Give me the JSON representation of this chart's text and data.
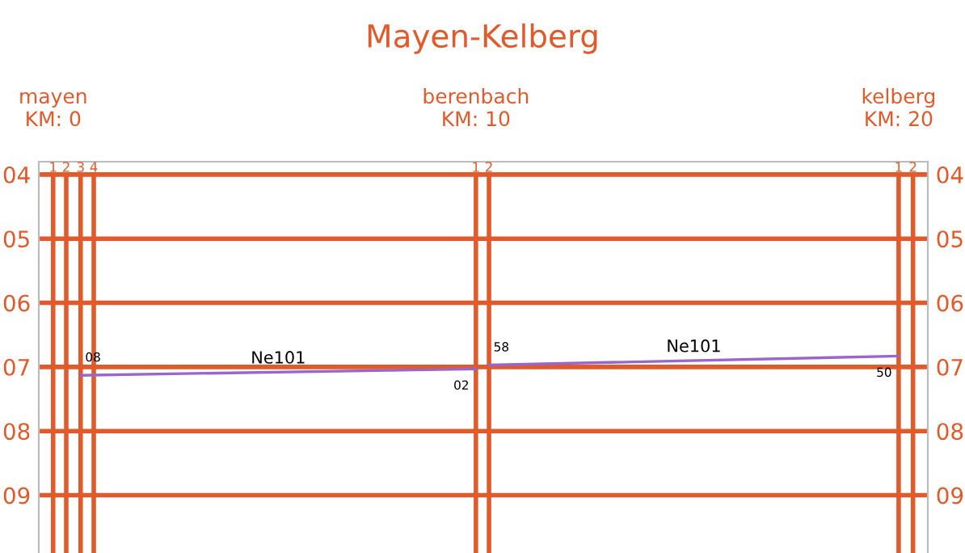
{
  "chart_data": {
    "type": "line",
    "title": "Mayen-Kelberg",
    "xlim": [
      -0.34,
      20.69
    ],
    "xticks": [
      {
        "value": 0,
        "label": "mayen\nKM: 0"
      },
      {
        "value": 10,
        "label": "berenbach\nKM: 10"
      },
      {
        "value": 20,
        "label": "kelberg\nKM: 20"
      }
    ],
    "ylim": [
      9.9,
      3.8
    ],
    "yticks": [
      {
        "value": 4,
        "label": "04"
      },
      {
        "value": 5,
        "label": "05"
      },
      {
        "value": 6,
        "label": "06"
      },
      {
        "value": 7,
        "label": "07"
      },
      {
        "value": 8,
        "label": "08"
      },
      {
        "value": 9,
        "label": "09"
      }
    ],
    "y2lim": [
      9.9,
      3.8
    ],
    "y2ticks": [
      {
        "value": 4,
        "label": "04"
      },
      {
        "value": 5,
        "label": "05"
      },
      {
        "value": 6,
        "label": "06"
      },
      {
        "value": 7,
        "label": "07"
      },
      {
        "value": 8,
        "label": "08"
      },
      {
        "value": 9,
        "label": "09"
      }
    ],
    "grid": "y",
    "ref_lines": [
      {
        "axis": "x",
        "value": 0,
        "color": "#e05a2b"
      },
      {
        "axis": "x",
        "value": 0.31,
        "color": "#e05a2b"
      },
      {
        "axis": "x",
        "value": 0.65,
        "color": "#e05a2b"
      },
      {
        "axis": "x",
        "value": 0.96,
        "color": "#e05a2b"
      },
      {
        "axis": "x",
        "value": 10,
        "color": "#e05a2b"
      },
      {
        "axis": "x",
        "value": 10.31,
        "color": "#e05a2b"
      },
      {
        "axis": "x",
        "value": 20,
        "color": "#e05a2b"
      },
      {
        "axis": "x",
        "value": 20.34,
        "color": "#e05a2b"
      }
    ],
    "marker": "none",
    "line_style": "solid",
    "series": [
      {
        "name": "Ne101",
        "color": "#9966cc",
        "x": [
          0.65,
          10
        ],
        "values": [
          7.13,
          7.03
        ]
      },
      {
        "name": "Ne101",
        "color": "#9966cc",
        "x": [
          10.31,
          20
        ],
        "values": [
          6.97,
          6.83
        ]
      }
    ],
    "annotations": [
      {
        "text": "1",
        "x": 0,
        "y": 3.9
      },
      {
        "text": "2",
        "x": 0.31,
        "y": 3.9
      },
      {
        "text": "3",
        "x": 0.65,
        "y": 3.9
      },
      {
        "text": "4",
        "x": 0.96,
        "y": 3.9
      },
      {
        "text": "1",
        "x": 10,
        "y": 3.9
      },
      {
        "text": "2",
        "x": 10.31,
        "y": 3.9
      },
      {
        "text": "1",
        "x": 20,
        "y": 3.9
      },
      {
        "text": "2",
        "x": 20.34,
        "y": 3.9
      },
      {
        "text": "08",
        "x": 0.65,
        "y": 7.13
      },
      {
        "text": "02",
        "x": 10,
        "y": 7.03
      },
      {
        "text": "58",
        "x": 10.31,
        "y": 6.97
      },
      {
        "text": "50",
        "x": 20,
        "y": 6.83
      }
    ]
  }
}
